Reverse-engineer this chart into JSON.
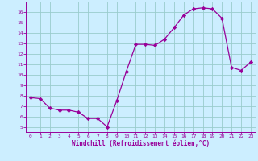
{
  "x": [
    0,
    1,
    2,
    3,
    4,
    5,
    6,
    7,
    8,
    9,
    10,
    11,
    12,
    13,
    14,
    15,
    16,
    17,
    18,
    19,
    20,
    21,
    22,
    23
  ],
  "y": [
    7.8,
    7.7,
    6.8,
    6.6,
    6.6,
    6.4,
    5.8,
    5.8,
    5.0,
    7.5,
    10.3,
    12.9,
    12.9,
    12.8,
    13.4,
    14.5,
    15.7,
    16.3,
    16.4,
    16.3,
    15.4,
    10.7,
    10.4,
    11.2
  ],
  "line_color": "#990099",
  "marker": "D",
  "marker_size": 2.2,
  "bg_color": "#cceeff",
  "grid_color": "#99cccc",
  "xlabel": "Windchill (Refroidissement éolien,°C)",
  "xlabel_color": "#990099",
  "tick_color": "#990099",
  "ylim": [
    4.5,
    17.0
  ],
  "xlim": [
    -0.5,
    23.5
  ],
  "yticks": [
    5,
    6,
    7,
    8,
    9,
    10,
    11,
    12,
    13,
    14,
    15,
    16
  ],
  "xticks": [
    0,
    1,
    2,
    3,
    4,
    5,
    6,
    7,
    8,
    9,
    10,
    11,
    12,
    13,
    14,
    15,
    16,
    17,
    18,
    19,
    20,
    21,
    22,
    23
  ]
}
